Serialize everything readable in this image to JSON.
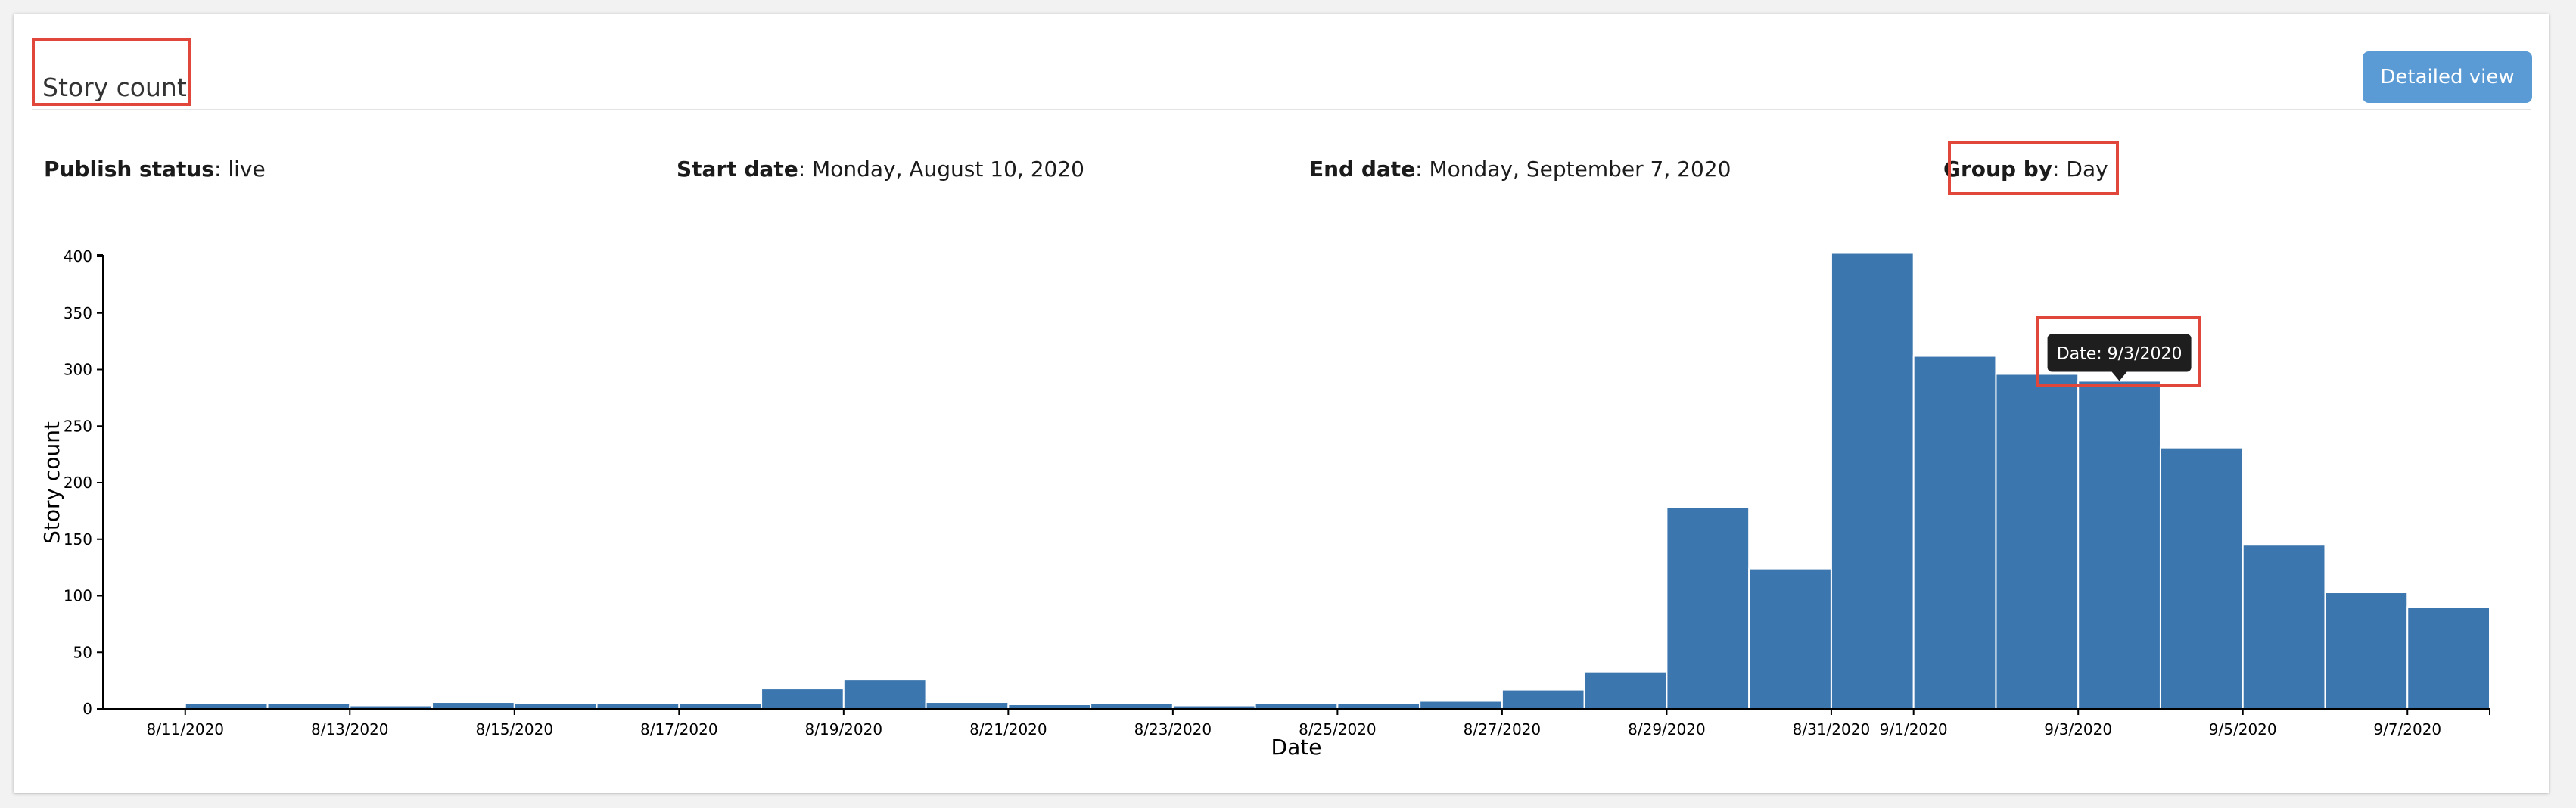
{
  "header": {
    "title": "Story count",
    "detail_button": "Detailed view"
  },
  "filters": [
    {
      "label": "Publish status",
      "value": "live"
    },
    {
      "label": "Start date",
      "value": "Monday, August 10, 2020"
    },
    {
      "label": "End date",
      "value": "Monday, September 7, 2020"
    },
    {
      "label": "Group by",
      "value": "Day"
    }
  ],
  "tooltip": {
    "text": "Date: 9/3/2020"
  },
  "colors": {
    "bar": "#3b76ae",
    "highlight": "#e0463a",
    "button": "#5b9bd5"
  },
  "chart_data": {
    "type": "bar",
    "xlabel": "Date",
    "ylabel": "Story count",
    "ylim": [
      0,
      400
    ],
    "yticks": [
      0,
      50,
      100,
      150,
      200,
      250,
      300,
      350,
      400
    ],
    "grid": false,
    "categories": [
      "8/10/2020",
      "8/11/2020",
      "8/12/2020",
      "8/13/2020",
      "8/14/2020",
      "8/15/2020",
      "8/16/2020",
      "8/17/2020",
      "8/18/2020",
      "8/19/2020",
      "8/20/2020",
      "8/21/2020",
      "8/22/2020",
      "8/23/2020",
      "8/24/2020",
      "8/25/2020",
      "8/26/2020",
      "8/27/2020",
      "8/28/2020",
      "8/29/2020",
      "8/30/2020",
      "8/31/2020",
      "9/1/2020",
      "9/2/2020",
      "9/3/2020",
      "9/4/2020",
      "9/5/2020",
      "9/6/2020",
      "9/7/2020"
    ],
    "values": [
      1,
      5,
      5,
      3,
      6,
      5,
      5,
      5,
      18,
      26,
      6,
      4,
      5,
      3,
      5,
      5,
      7,
      17,
      33,
      178,
      124,
      403,
      312,
      296,
      290,
      231,
      145,
      103,
      90
    ],
    "tick_labels": [
      "8/11/2020",
      "8/13/2020",
      "8/15/2020",
      "8/17/2020",
      "8/19/2020",
      "8/21/2020",
      "8/23/2020",
      "8/25/2020",
      "8/27/2020",
      "8/29/2020",
      "8/31/2020",
      "9/1/2020",
      "9/3/2020",
      "9/5/2020",
      "9/7/2020"
    ],
    "highlighted": "9/3/2020"
  }
}
